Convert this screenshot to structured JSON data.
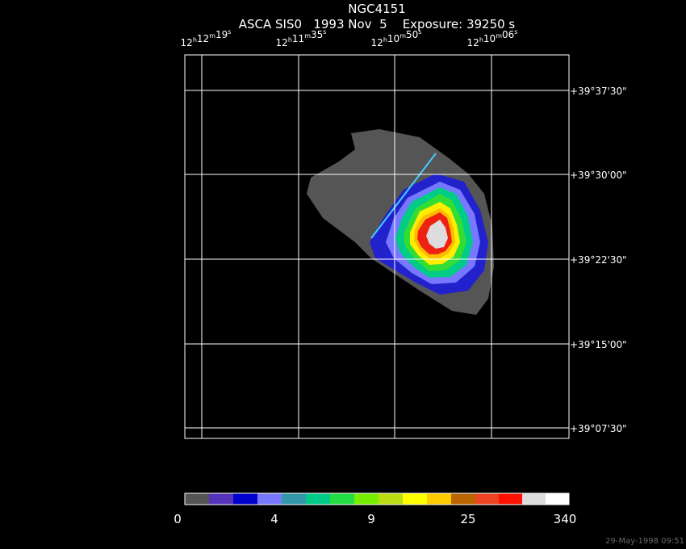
{
  "title": "NGC4151",
  "subtitle": "ASCA SIS0   1993 Nov  5    Exposure: 39250 s",
  "ra_labels": [
    [
      [
        "12",
        "h"
      ],
      [
        "12",
        "m"
      ],
      [
        "19",
        "s"
      ]
    ],
    [
      [
        "12",
        "h"
      ],
      [
        "11",
        "m"
      ],
      [
        "35",
        "s"
      ]
    ],
    [
      [
        "12",
        "h"
      ],
      [
        "10",
        "m"
      ],
      [
        "50",
        "s"
      ]
    ],
    [
      [
        "12",
        "h"
      ],
      [
        "10",
        "m"
      ],
      [
        "06",
        "s"
      ]
    ]
  ],
  "dec_labels": [
    "+39°37'30\"",
    "+39°30'00\"",
    "+39°22'30\"",
    "+39°15'00\"",
    "+39°07'30\""
  ],
  "colorbar_labels": [
    "0",
    "4",
    "9",
    "25",
    "340"
  ],
  "footer": "29-May-1998 09:51"
}
